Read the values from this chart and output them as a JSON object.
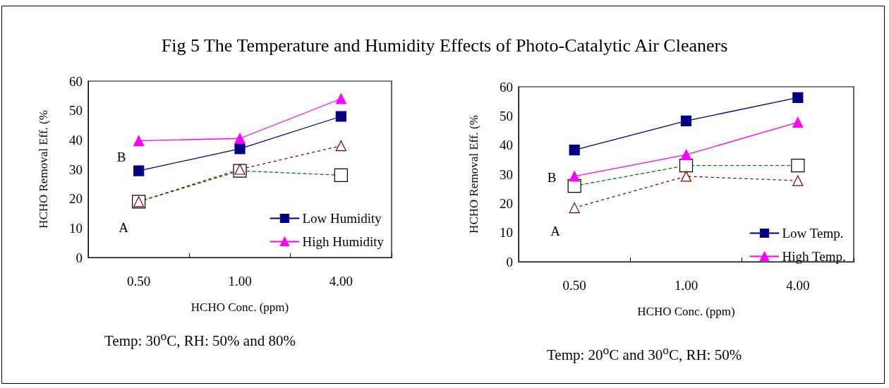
{
  "chart_data": [
    {
      "type": "line",
      "title": "Fig 5  The Temperature and Humidity Effects of Photo-Catalytic Air Cleaners",
      "xlabel": "HCHO Conc. (ppm)",
      "ylabel": "HCHO Removal Eff. (%",
      "categories": [
        "0.50",
        "1.00",
        "4.00"
      ],
      "ylim": [
        0,
        60
      ],
      "yticks": [
        0,
        10,
        20,
        30,
        40,
        50,
        60
      ],
      "grid": false,
      "legend": "bottom right",
      "series": [
        {
          "name": "Low Humidity",
          "color": "#000080",
          "marker": "square",
          "line_style": "solid",
          "values": [
            29.5,
            37,
            48
          ]
        },
        {
          "name": "High Humidity",
          "color": "#ff00ff",
          "marker": "triangle",
          "line_style": "solid",
          "values": [
            39.7,
            40.5,
            54
          ]
        },
        {
          "color": "#008000",
          "marker": "square",
          "line_style": "dashed",
          "values": [
            19,
            29.5,
            28
          ]
        },
        {
          "color": "#800000",
          "marker": "triangle",
          "line_style": "dotted",
          "values": [
            19,
            30,
            38
          ]
        }
      ],
      "annotations": [
        "B",
        "A",
        "Temp: 30$^{o}$C, RH: 50% and 80%"
      ]
    },
    {
      "type": "line",
      "xlabel": "HCHO Conc. (ppm)",
      "ylabel": "HCHO Removal Eff. (%",
      "categories": [
        "0.50",
        "1.00",
        "4.00"
      ],
      "ylim": [
        0,
        60
      ],
      "yticks": [
        0,
        10,
        20,
        30,
        40,
        50,
        60
      ],
      "grid": false,
      "legend": "bottom right",
      "series": [
        {
          "name": "Low Temp.",
          "color": "#000080",
          "marker": "square",
          "line_style": "solid",
          "values": [
            38.3,
            48.3,
            56.3
          ]
        },
        {
          "name": "High Temp.",
          "color": "#ff00ff",
          "marker": "triangle",
          "line_style": "solid",
          "values": [
            29.3,
            36.7,
            47.8
          ]
        },
        {
          "color": "#008000",
          "marker": "square",
          "line_style": "dashed",
          "values": [
            26,
            33,
            33
          ]
        },
        {
          "color": "#800000",
          "marker": "triangle",
          "line_style": "dotted",
          "values": [
            18.5,
            29.3,
            27.8
          ]
        }
      ],
      "annotations": [
        "B",
        "A",
        "Temp: 20$^{o}$C and 30$^{o}$C, RH: 50%"
      ]
    }
  ]
}
